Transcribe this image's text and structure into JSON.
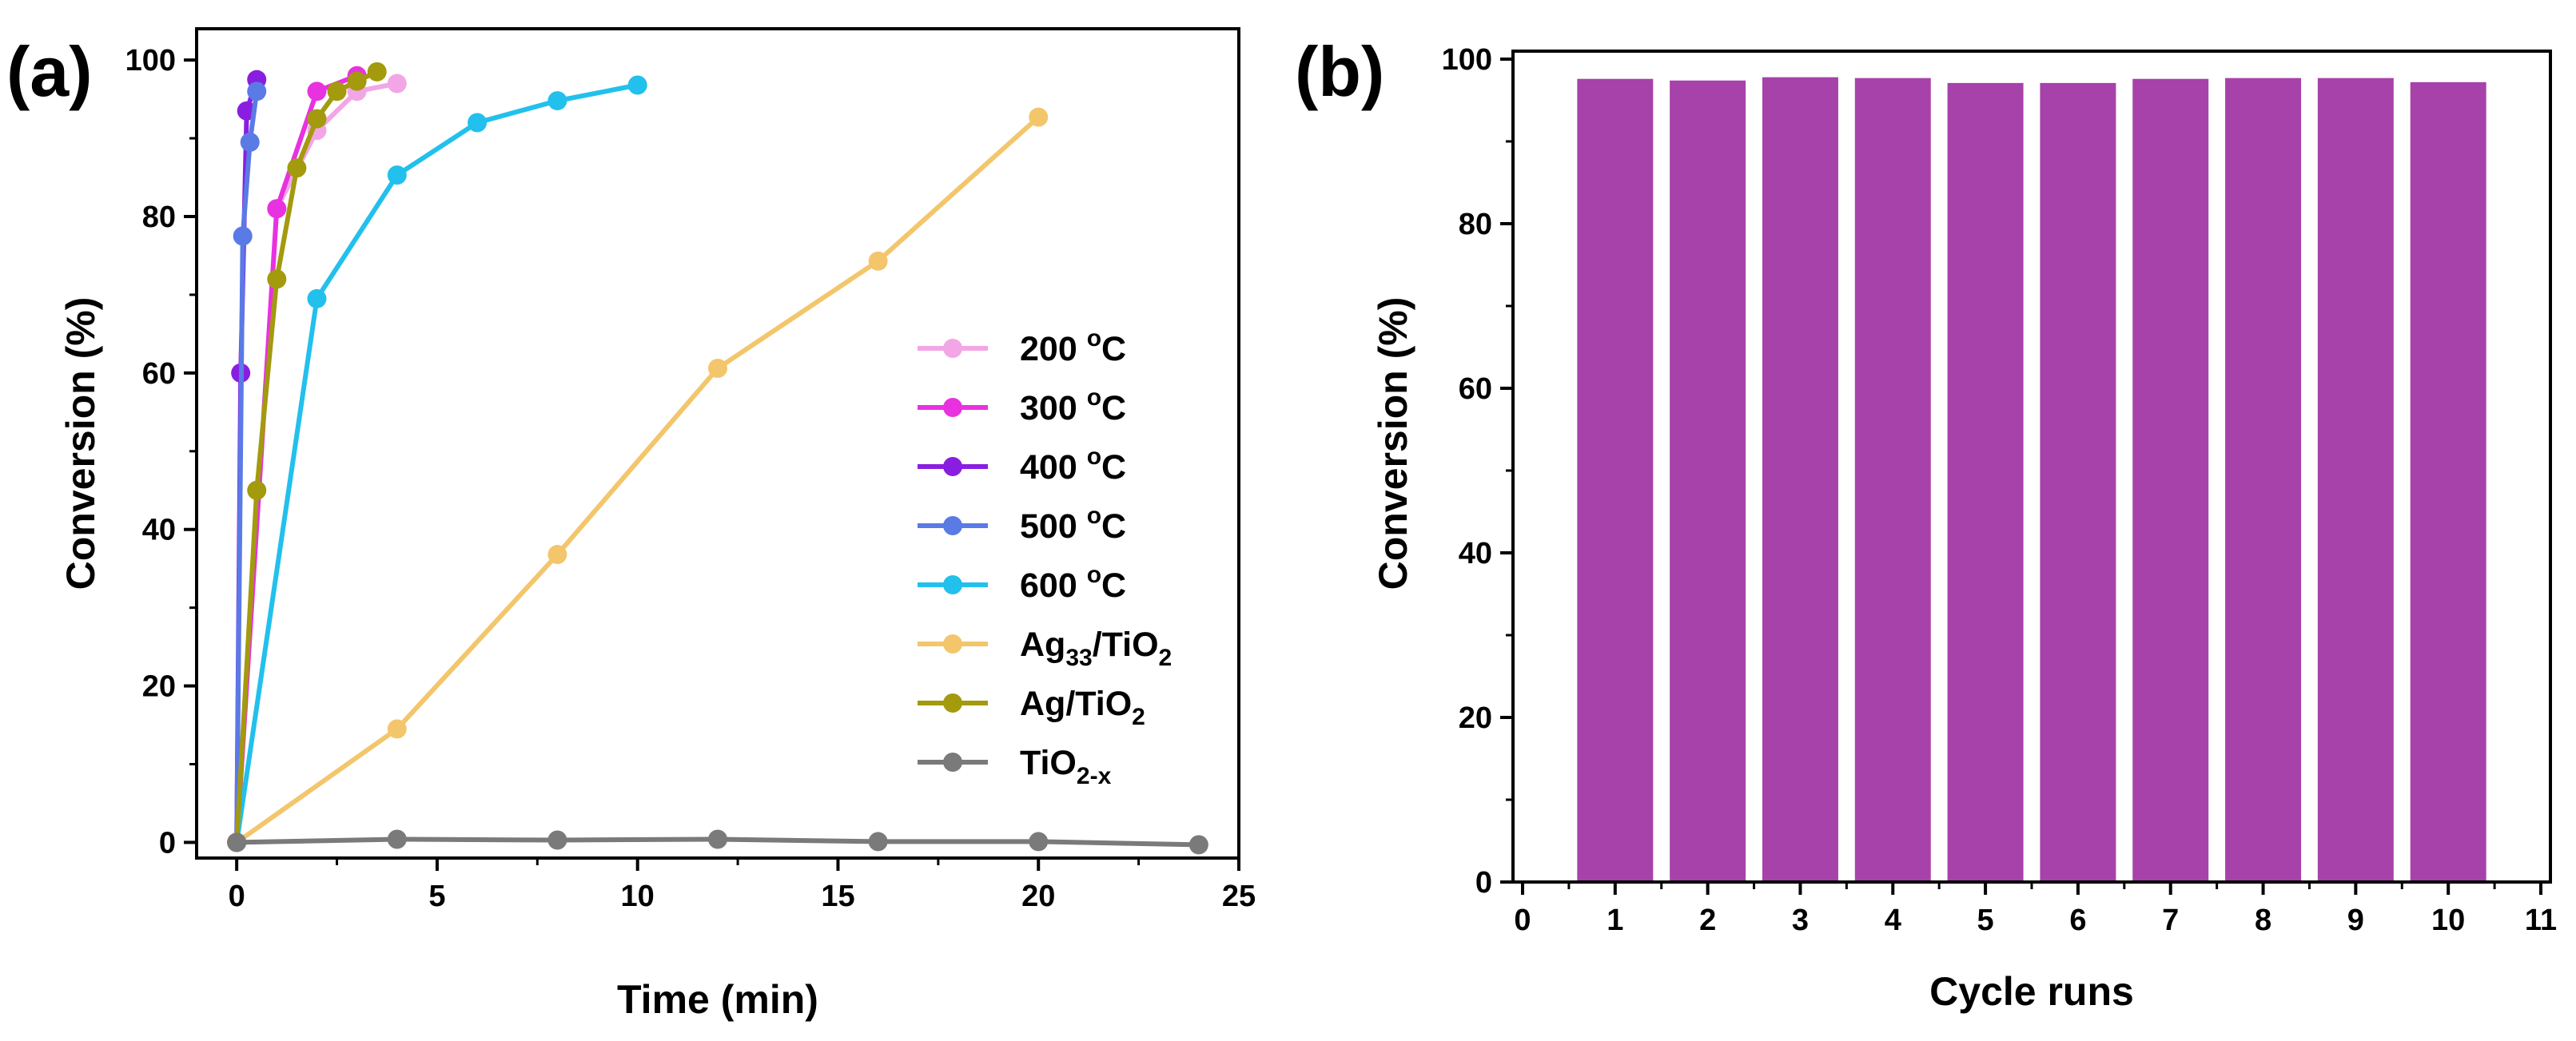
{
  "chart_data": [
    {
      "panel": "(a)",
      "type": "line",
      "xlabel": "Time (min)",
      "ylabel": "Conversion (%)",
      "xlim": [
        -1,
        25
      ],
      "ylim": [
        -2,
        104
      ],
      "xticks": [
        0,
        5,
        10,
        15,
        20,
        25
      ],
      "yticks": [
        0,
        20,
        40,
        60,
        80,
        100
      ],
      "grid": false,
      "legend_position": "right",
      "series": [
        {
          "name": "200 °C",
          "label_main": "200 ",
          "label_sup": "o",
          "label_after": "C",
          "label_sub": "",
          "color": "#f2a6e6",
          "x": [
            0,
            1,
            2,
            3,
            4
          ],
          "y": [
            0,
            81,
            91,
            96,
            97
          ]
        },
        {
          "name": "300 °C",
          "label_main": "300 ",
          "label_sup": "o",
          "label_after": "C",
          "label_sub": "",
          "color": "#e832e0",
          "x": [
            0,
            1,
            2,
            3
          ],
          "y": [
            0,
            81,
            96,
            98
          ]
        },
        {
          "name": "400 °C",
          "label_main": "400 ",
          "label_sup": "o",
          "label_after": "C",
          "label_sub": "",
          "color": "#8a1ee0",
          "x": [
            0,
            0.1,
            0.25,
            0.5
          ],
          "y": [
            0,
            60,
            93.5,
            97.5
          ]
        },
        {
          "name": "500 °C",
          "label_main": "500 ",
          "label_sup": "o",
          "label_after": "C",
          "label_sub": "",
          "color": "#5a7ae6",
          "x": [
            0,
            0.15,
            0.33,
            0.5
          ],
          "y": [
            0,
            77.5,
            89.5,
            96
          ]
        },
        {
          "name": "600 °C",
          "label_main": "600 ",
          "label_sup": "o",
          "label_after": "C",
          "label_sub": "",
          "color": "#22c0ec",
          "x": [
            0,
            2,
            4,
            6,
            8,
            10
          ],
          "y": [
            0,
            69.5,
            85.3,
            92,
            94.8,
            96.8
          ]
        },
        {
          "name": "Ag33/TiO2",
          "label_main": "Ag",
          "label_sub": "33",
          "label_after": "/TiO",
          "label_sub2": "2",
          "label_sup": "",
          "color": "#f3c66c",
          "x": [
            0,
            4,
            8,
            12,
            16,
            20
          ],
          "y": [
            0,
            14.5,
            36.8,
            60.6,
            74.3,
            92.7
          ]
        },
        {
          "name": "Ag/TiO2",
          "label_main": "Ag/TiO",
          "label_sub": "2",
          "label_after": "",
          "label_sup": "",
          "color": "#a39a0e",
          "x": [
            0,
            0.5,
            1,
            1.5,
            2,
            2.5,
            3,
            3.5
          ],
          "y": [
            0,
            45,
            72,
            86.2,
            92.5,
            96,
            97.3,
            98.5
          ]
        },
        {
          "name": "TiO2-x",
          "label_main": "TiO",
          "label_sub": "2-x",
          "label_after": "",
          "label_sup": "",
          "color": "#7a7a7a",
          "x": [
            0,
            4,
            8,
            12,
            16,
            20,
            24
          ],
          "y": [
            0,
            0.4,
            0.3,
            0.4,
            0.1,
            0.1,
            -0.3
          ]
        }
      ]
    },
    {
      "panel": "(b)",
      "type": "bar",
      "xlabel": "Cycle runs",
      "ylabel": "Conversion (%)",
      "xlim": [
        0,
        11
      ],
      "ylim": [
        0,
        100
      ],
      "xticks": [
        0,
        1,
        2,
        3,
        4,
        5,
        6,
        7,
        8,
        9,
        10,
        11
      ],
      "yticks": [
        0,
        20,
        40,
        60,
        80,
        100
      ],
      "grid": false,
      "bar_color": "#a642aa",
      "categories": [
        1,
        2,
        3,
        4,
        5,
        6,
        7,
        8,
        9,
        10
      ],
      "values": [
        97.6,
        97.4,
        97.8,
        97.7,
        97.1,
        97.1,
        97.6,
        97.7,
        97.7,
        97.2
      ]
    }
  ]
}
